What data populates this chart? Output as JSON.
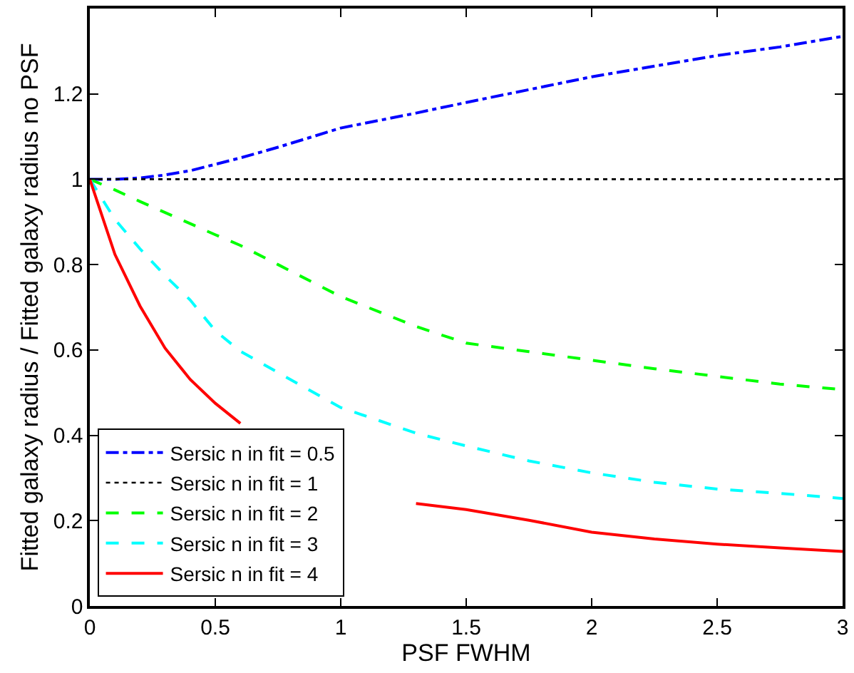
{
  "chart_data": {
    "type": "line",
    "xlabel": "PSF FWHM",
    "ylabel": "Fitted galaxy radius / Fitted galaxy radius no PSF",
    "x": [
      0,
      0.1,
      0.2,
      0.3,
      0.4,
      0.5,
      0.6,
      0.75,
      1,
      1.3,
      1.5,
      1.75,
      2,
      2.25,
      2.5,
      2.75,
      3
    ],
    "series": [
      {
        "name": "Sersic n in fit = 0.5",
        "color": "#0000ff",
        "line_style": "dashdot",
        "values": [
          1,
          1,
          1.003,
          1.01,
          1.02,
          1.035,
          1.05,
          1.075,
          1.12,
          1.155,
          1.18,
          1.21,
          1.24,
          1.265,
          1.29,
          1.31,
          1.335
        ]
      },
      {
        "name": "Sersic n in fit = 1",
        "color": "#000000",
        "line_style": "dotted",
        "values": [
          1,
          1,
          1,
          1,
          1,
          1,
          1,
          1,
          1,
          1,
          1,
          1,
          1,
          1,
          1,
          1,
          1
        ]
      },
      {
        "name": "Sersic n in fit = 2",
        "color": "#00ff00",
        "line_style": "dashed",
        "values": [
          1,
          0.975,
          0.948,
          0.922,
          0.896,
          0.87,
          0.845,
          0.8,
          0.725,
          0.655,
          0.616,
          0.596,
          0.576,
          0.556,
          0.538,
          0.52,
          0.507
        ]
      },
      {
        "name": "Sersic n in fit = 3",
        "color": "#00ffff",
        "line_style": "dashed",
        "values": [
          1,
          0.906,
          0.837,
          0.774,
          0.717,
          0.645,
          0.597,
          0.547,
          0.465,
          0.405,
          0.375,
          0.34,
          0.312,
          0.29,
          0.274,
          0.264,
          0.252
        ]
      },
      {
        "name": "Sersic n in fit = 4",
        "color": "#ff0000",
        "line_style": "solid",
        "values": [
          1,
          0.824,
          0.703,
          0.604,
          0.531,
          0.475,
          0.428,
          null,
          null,
          0.24,
          0.226,
          0.201,
          0.173,
          0.157,
          0.145,
          0.136,
          0.128
        ]
      }
    ],
    "xlim": [
      0,
      3
    ],
    "xticks": [
      0,
      0.5,
      1,
      1.5,
      2,
      2.5,
      3
    ],
    "ylim": [
      0,
      1.4
    ],
    "yticks": [
      0,
      0.2,
      0.4,
      0.6,
      0.8,
      1,
      1.2
    ],
    "legend": "bottom left",
    "marker": "none"
  }
}
